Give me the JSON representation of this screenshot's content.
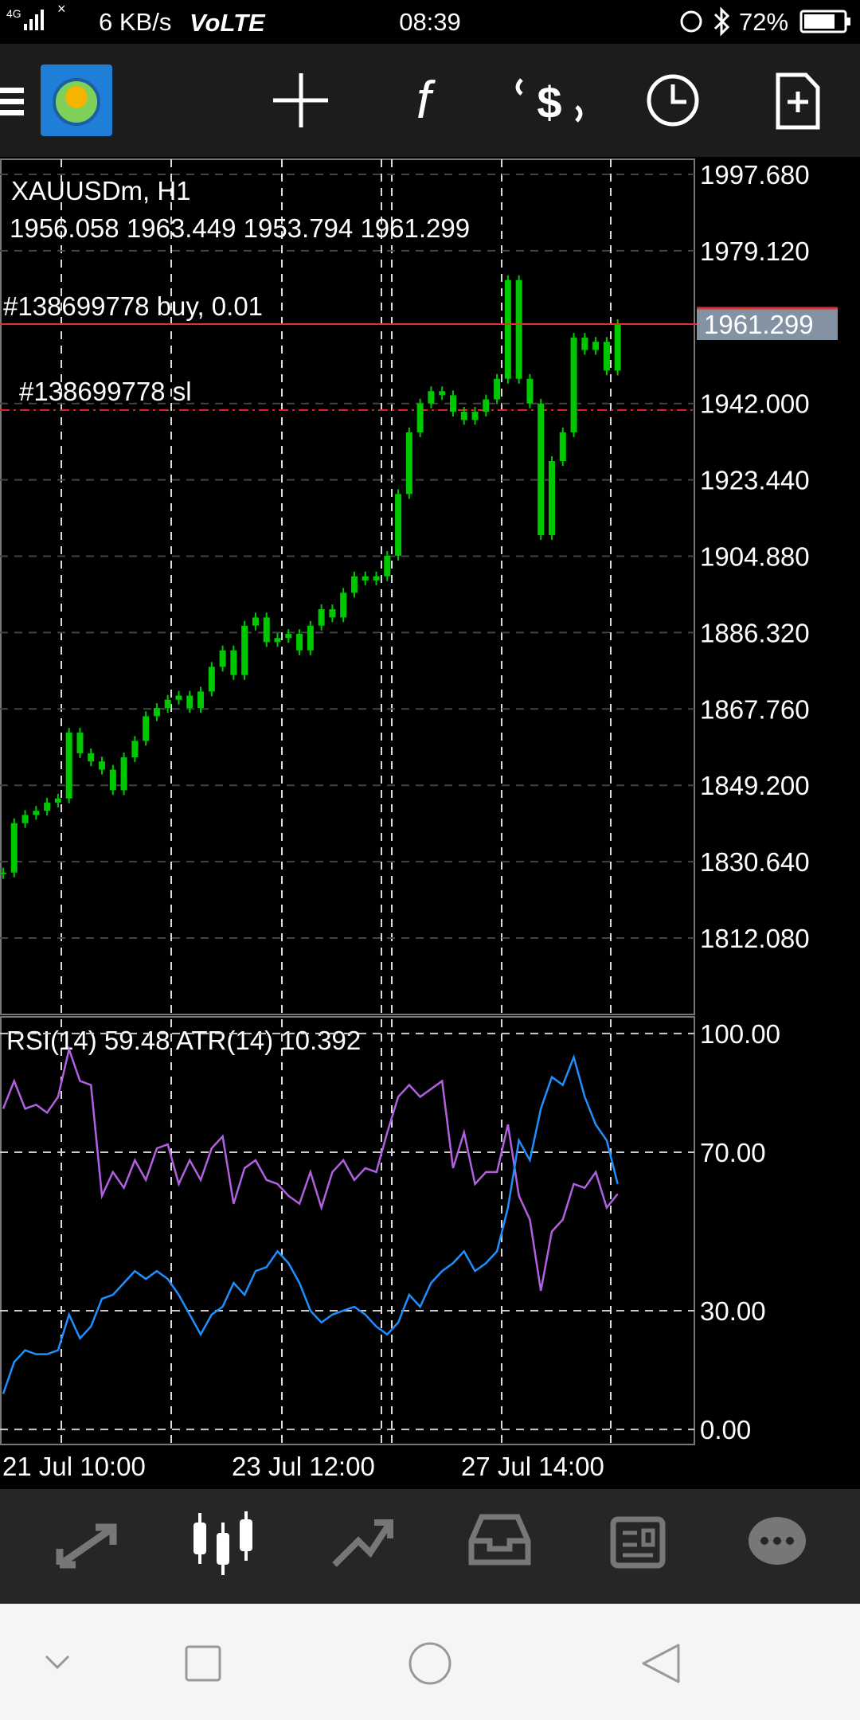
{
  "status_bar": {
    "network": "4G",
    "speed": "6 KB/s",
    "volte": "VoLTE",
    "time": "08:39",
    "battery": "72%"
  },
  "chart_data": [
    {
      "type": "candlestick",
      "title": "XAUUSDm, H1",
      "ohlc": [
        1956.058,
        1963.449,
        1953.794,
        1961.299
      ],
      "order_label": "#138699778 buy, 0.01",
      "sl_label": "#138699778 sl",
      "sl_level": 1940.4,
      "values": [
        1828,
        1840,
        1842,
        1843,
        1845,
        1846,
        1862,
        1857,
        1855,
        1853,
        1848,
        1856,
        1860,
        1866,
        1868,
        1870,
        1871,
        1868,
        1872,
        1878,
        1882,
        1876,
        1888,
        1890,
        1884,
        1885,
        1886,
        1882,
        1888,
        1892,
        1890,
        1896,
        1900,
        1899,
        1900,
        1905,
        1920,
        1935,
        1942,
        1945,
        1944,
        1940,
        1938,
        1940,
        1943,
        1948,
        1972,
        1948,
        1942,
        1910,
        1928,
        1935,
        1958,
        1955,
        1957,
        1950,
        1961.299
      ],
      "color": "#00c800",
      "ylim": [
        1793.5,
        2001.36
      ],
      "yticks": [
        {
          "value": 1997.68,
          "label": "1997.680"
        },
        {
          "value": 1979.12,
          "label": "1979.120"
        },
        {
          "value": 1942,
          "label": "1942.000"
        },
        {
          "value": 1923.44,
          "label": "1923.440"
        },
        {
          "value": 1904.88,
          "label": "1904.880"
        },
        {
          "value": 1886.32,
          "label": "1886.320"
        },
        {
          "value": 1867.76,
          "label": "1867.760"
        },
        {
          "value": 1849.2,
          "label": "1849.200"
        },
        {
          "value": 1830.64,
          "label": "1830.640"
        },
        {
          "value": 1812.08,
          "label": "1812.080"
        }
      ],
      "x_labels": [
        "21 Jul 10:00",
        "23 Jul 12:00",
        "27 Jul 14:00"
      ]
    },
    {
      "type": "line",
      "rsi_name": "RSI(14)",
      "atr_name": "ATR(14)",
      "atr_value": 10.392,
      "series": [
        {
          "name": "RSI(14)",
          "color": "#b060e0",
          "values": [
            81,
            88,
            81,
            82,
            80,
            84,
            96,
            88,
            87,
            59,
            65,
            61,
            68,
            63,
            71,
            72,
            62,
            68,
            63,
            71,
            74,
            57,
            66,
            68,
            63,
            62,
            59,
            57,
            65,
            56,
            65,
            68,
            63,
            66,
            65,
            75,
            84,
            87,
            84,
            86,
            88,
            66,
            75,
            62,
            65,
            65,
            77,
            59,
            53,
            35,
            50,
            53,
            62,
            61,
            65,
            56,
            59.48
          ]
        },
        {
          "name": "ATR(14)",
          "color": "#1e8fff",
          "values": [
            9,
            17,
            20,
            19,
            19,
            20,
            29,
            23,
            26,
            33,
            34,
            37,
            40,
            38,
            40,
            38,
            34,
            29,
            24,
            29,
            31,
            37,
            34,
            40,
            41,
            45,
            42,
            37,
            30,
            27,
            29,
            30,
            31,
            29,
            26,
            24,
            27,
            34,
            31,
            37,
            40,
            42,
            45,
            40,
            42,
            45,
            56,
            73,
            68,
            81,
            89,
            87,
            94,
            84,
            77,
            73,
            62
          ]
        }
      ],
      "ylim": [
        -3.8,
        104.2
      ],
      "yticks": [
        {
          "value": 0,
          "label": "0.00"
        },
        {
          "value": 30,
          "label": "30.00"
        },
        {
          "value": 70,
          "label": "70.00"
        },
        {
          "value": 100,
          "label": "100.00"
        }
      ]
    }
  ]
}
